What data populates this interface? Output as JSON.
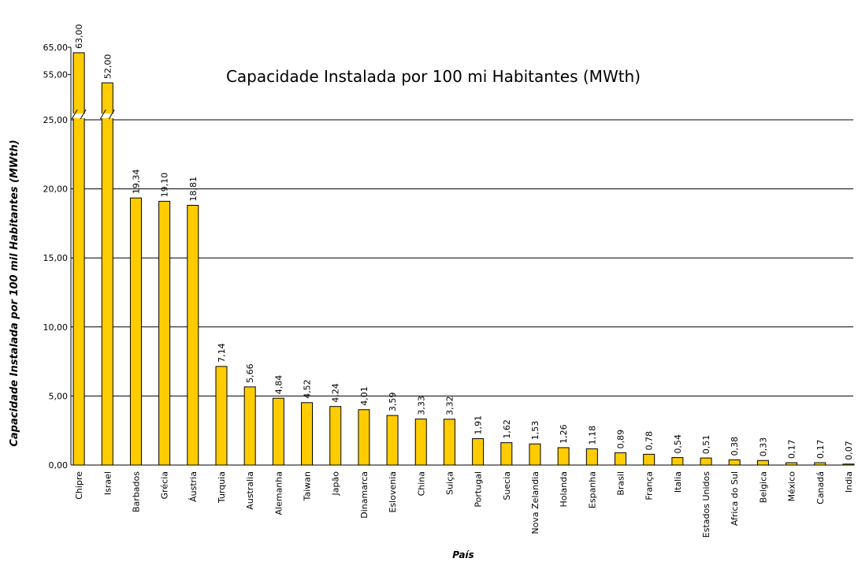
{
  "chart_data": {
    "type": "bar",
    "title": "Capacidade Instalada por 100 mi Habitantes (MWth)",
    "x_label": "País",
    "y_label": "Capacidade Instalada por 100 mil Habitantes (MWth)",
    "categories": [
      "Chipre",
      "Israel",
      "Barbados",
      "Grécia",
      "Áustria",
      "Turquia",
      "Australia",
      "Alemanha",
      "Taiwan",
      "Japão",
      "Dinamarca",
      "Eslovenia",
      "China",
      "Suiça",
      "Portugal",
      "Suecia",
      "Nova Zelandia",
      "Holanda",
      "Espanha",
      "Brasil",
      "França",
      "Italia",
      "Estados Unidos",
      "Africa do Sul",
      "Belgica",
      "México",
      "Canadá",
      "India"
    ],
    "values": [
      63,
      52,
      19.34,
      19.1,
      18.81,
      7.14,
      5.66,
      4.84,
      4.52,
      4.24,
      4.01,
      3.59,
      3.33,
      3.32,
      1.91,
      1.62,
      1.53,
      1.26,
      1.18,
      0.89,
      0.78,
      0.54,
      0.51,
      0.38,
      0.33,
      0.17,
      0.17,
      0.07
    ],
    "value_labels": [
      "63,00",
      "52,00",
      "19,34",
      "19,10",
      "18,81",
      "7,14",
      "5,66",
      "4,84",
      "4,52",
      "4,24",
      "4,01",
      "3,59",
      "3,33",
      "3,32",
      "1,91",
      "1,62",
      "1,53",
      "1,26",
      "1,18",
      "0,89",
      "0,78",
      "0,54",
      "0,51",
      "0,38",
      "0,33",
      "0,17",
      "0,17",
      "0,07"
    ],
    "color": "#ffcc00",
    "ylim": [
      0,
      25
    ],
    "y_upper_lim": [
      50,
      65
    ],
    "axis_break": true,
    "yticks": [
      {
        "value": 0,
        "label": "0,00"
      },
      {
        "value": 5,
        "label": "5,00"
      },
      {
        "value": 10,
        "label": "10,00"
      },
      {
        "value": 15,
        "label": "15,00"
      },
      {
        "value": 20,
        "label": "20,00"
      },
      {
        "value": 25,
        "label": "25,00"
      },
      {
        "value": 55,
        "label": "55,00"
      },
      {
        "value": 65,
        "label": "65,00"
      }
    ],
    "grid": true
  }
}
